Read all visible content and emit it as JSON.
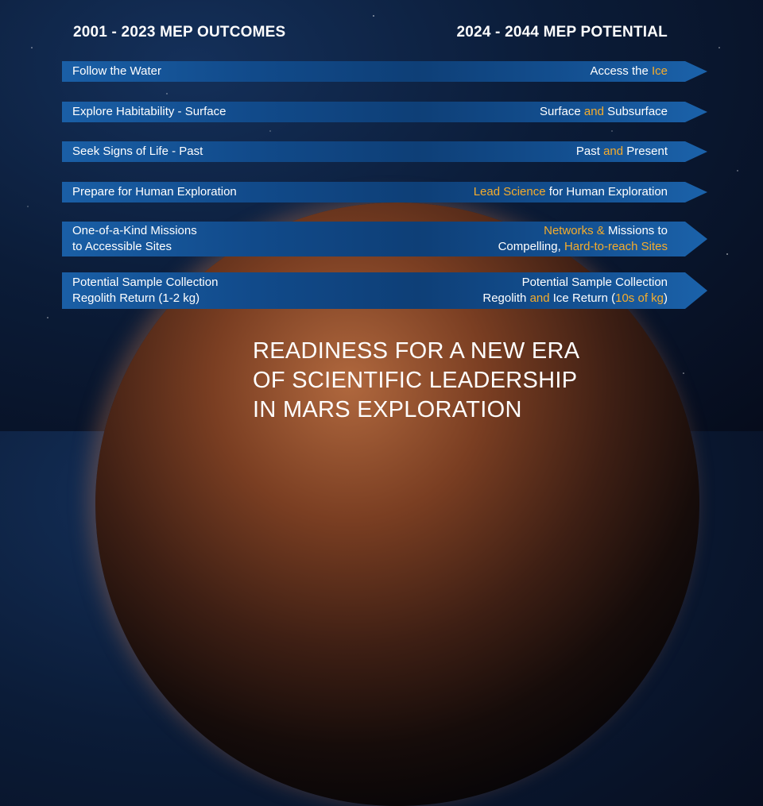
{
  "header": {
    "left_title": "2001 - 2023 MEP OUTCOMES",
    "right_title": "2024 - 2044 MEP POTENTIAL"
  },
  "colors": {
    "highlight": "#f5ac2c",
    "arrow_blue": "#114a8a",
    "background": "#0b1c38"
  },
  "rows": [
    {
      "outcome": [
        "Follow the Water"
      ],
      "potential": [
        [
          {
            "t": "Access the "
          },
          {
            "t": "Ice",
            "hl": true
          }
        ]
      ]
    },
    {
      "outcome": [
        "Explore Habitability - Surface"
      ],
      "potential": [
        [
          {
            "t": "Surface "
          },
          {
            "t": "and",
            "hl": true
          },
          {
            "t": " Subsurface"
          }
        ]
      ]
    },
    {
      "outcome": [
        "Seek Signs of Life  - Past"
      ],
      "potential": [
        [
          {
            "t": "Past "
          },
          {
            "t": "and",
            "hl": true
          },
          {
            "t": " Present"
          }
        ]
      ]
    },
    {
      "outcome": [
        "Prepare for Human Exploration"
      ],
      "potential": [
        [
          {
            "t": "Lead Science",
            "hl": true
          },
          {
            "t": " for Human Exploration"
          }
        ]
      ]
    },
    {
      "outcome": [
        "One-of-a-Kind Missions",
        "to Accessible Sites"
      ],
      "potential": [
        [
          {
            "t": "Networks &",
            "hl": true
          },
          {
            "t": " Missions to"
          }
        ],
        [
          {
            "t": "Compelling, "
          },
          {
            "t": "Hard-to-reach Sites",
            "hl": true
          }
        ]
      ]
    },
    {
      "outcome": [
        "Potential Sample Collection",
        "Regolith Return (1-2 kg)"
      ],
      "potential": [
        [
          {
            "t": "Potential Sample Collection"
          }
        ],
        [
          {
            "t": "Regolith "
          },
          {
            "t": "and",
            "hl": true
          },
          {
            "t": " Ice Return ("
          },
          {
            "t": "10s of kg",
            "hl": true
          },
          {
            "t": ")"
          }
        ]
      ]
    }
  ],
  "footer": {
    "lines": [
      "READINESS FOR A NEW ERA",
      "OF SCIENTIFIC LEADERSHIP",
      "IN MARS EXPLORATION"
    ]
  }
}
